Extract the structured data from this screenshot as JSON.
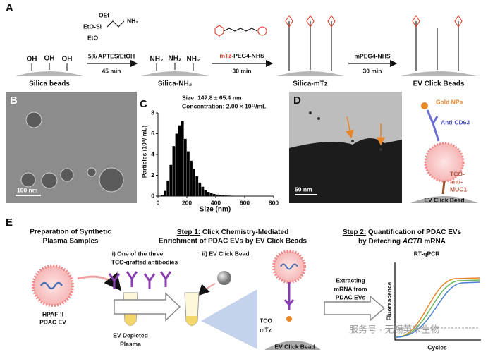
{
  "panel_a": {
    "label": "A",
    "captions": [
      "Silica beads",
      "Silica-NH₂",
      "Silica-mTz",
      "EV Click Beads"
    ],
    "oh": "OH",
    "nh2": "NH₂",
    "aptes": {
      "oet": "OEt",
      "etosi": "EtO-Si",
      "eto": "EtO",
      "nh2": "NH₂"
    },
    "steps": [
      {
        "reagent": "5% APTES/EtOH",
        "time": "45 min"
      },
      {
        "reagent_red": "mTz",
        "reagent": "-PEG4-NHS",
        "time": "30 min"
      },
      {
        "reagent": "mPEG4-NHS",
        "time": "30 min"
      }
    ]
  },
  "panel_b": {
    "label": "B",
    "scale": "100 nm"
  },
  "chart_data": {
    "type": "histogram",
    "label": "C",
    "annotations": [
      "Size: 147.8 ± 65.4 nm",
      "Concentration: 2.00 × 10¹¹/mL"
    ],
    "xlabel": "Size (nm)",
    "ylabel": "Particles (10⁹/ mL)",
    "bins": [
      0,
      20,
      40,
      60,
      80,
      100,
      120,
      140,
      160,
      180,
      200,
      220,
      240,
      260,
      280,
      300,
      320,
      340,
      360,
      380,
      400,
      420,
      440,
      460,
      480,
      500,
      520,
      540,
      560,
      580,
      600,
      620,
      640,
      660,
      680,
      700,
      720,
      740,
      760,
      780,
      800
    ],
    "counts": [
      0,
      0.1,
      0.5,
      1.5,
      3.0,
      4.8,
      6.0,
      6.8,
      7.2,
      5.5,
      4.3,
      3.4,
      2.6,
      1.9,
      1.3,
      0.9,
      0.6,
      0.4,
      0.3,
      0.2,
      0.15,
      0.1,
      0.08,
      0.06,
      0.05,
      0.04,
      0.03,
      0.02,
      0.02,
      0.01,
      0,
      0,
      0,
      0,
      0,
      0,
      0,
      0,
      0,
      0
    ],
    "color": "#000000",
    "xlim": [
      0,
      800
    ],
    "xticks": [
      0,
      200,
      400,
      600,
      800
    ],
    "ylim": [
      0,
      8
    ],
    "yticks": [
      0,
      2,
      4,
      6,
      8
    ]
  },
  "panel_d": {
    "label": "D",
    "scale": "50 nm",
    "schematic": {
      "gold": "Gold NPs",
      "cd63": "Anti-CD63",
      "tco1": "TCO-",
      "tco2": "anti-",
      "tco3": "MUC1",
      "bead": "EV Click Bead"
    }
  },
  "panel_e": {
    "label": "E",
    "prep": [
      "Preparation of Synthetic",
      "Plasma Samples"
    ],
    "step1": {
      "label": "Step 1:",
      "line1": " Click Chemistry-Mediated",
      "line2": "Enrichment of PDAC EVs by EV Click Beads"
    },
    "step2": {
      "label": "Step 2:",
      "line1": " Quantification of PDAC EVs",
      "line2a": "by Detecting ",
      "line2b": "ACTB",
      "line2c": " mRNA"
    },
    "antibodies": [
      "i) One of the three",
      "TCO-grafted  antibodies"
    ],
    "bead": "ii) EV Click Bead",
    "ev": [
      "HPAF-II",
      "PDAC EV"
    ],
    "plasma": [
      "EV-Depleted",
      "Plasma"
    ],
    "tco": "TCO",
    "mtz": "mTz",
    "click_bead": "EV Click Bead",
    "extract": [
      "Extracting",
      "mRNA from",
      "PDAC EVs"
    ],
    "qpcr": "RT-qPCR",
    "fluor": "Fluorescence",
    "cycles": "Cycles",
    "watermark": "服务号 · 无锡英禾生物"
  }
}
